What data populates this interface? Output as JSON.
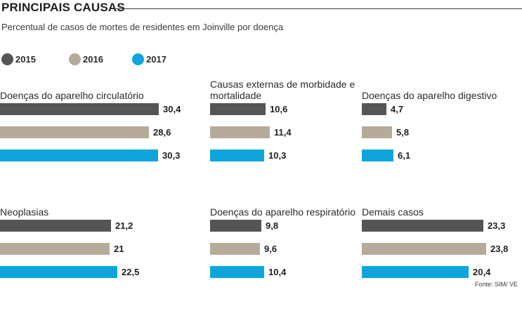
{
  "header": {
    "title": "PRINCIPAIS CAUSAS",
    "subtitle": "Percentual de casos de mortes de residentes em Joinville por doença"
  },
  "colors": {
    "2015": "#555555",
    "2016": "#b6aa9a",
    "2017": "#0ea5dd"
  },
  "legend": [
    {
      "label": "2015",
      "color": "#555555"
    },
    {
      "label": "2016",
      "color": "#b6aa9a"
    },
    {
      "label": "2017",
      "color": "#0ea5dd"
    }
  ],
  "chart_data": {
    "type": "bar",
    "orientation": "horizontal",
    "series_names": [
      "2015",
      "2016",
      "2017"
    ],
    "panels": [
      {
        "title": "Doenças do aparelho circulatório",
        "values": [
          30.4,
          28.6,
          30.3
        ],
        "labels": [
          "30,4",
          "28,6",
          "30,3"
        ]
      },
      {
        "title": "Causas externas de morbidade e mortalidade",
        "values": [
          10.6,
          11.4,
          10.3
        ],
        "labels": [
          "10,6",
          "11,4",
          "10,3"
        ]
      },
      {
        "title": "Doenças do aparelho digestivo",
        "values": [
          4.7,
          5.8,
          6.1
        ],
        "labels": [
          "4,7",
          "5,8",
          "6,1"
        ]
      },
      {
        "title": "Neoplasias",
        "values": [
          21.2,
          21,
          22.5
        ],
        "labels": [
          "21,2",
          "21",
          "22,5"
        ]
      },
      {
        "title": "Doenças do aparelho respiratório",
        "values": [
          9.8,
          9.6,
          10.4
        ],
        "labels": [
          "9,8",
          "9,6",
          "10,4"
        ]
      },
      {
        "title": "Demais casos",
        "values": [
          23.3,
          23.8,
          20.4
        ],
        "labels": [
          "23,3",
          "23,8",
          "20,4"
        ]
      }
    ]
  },
  "source": "Fonte: SIM/ VE"
}
